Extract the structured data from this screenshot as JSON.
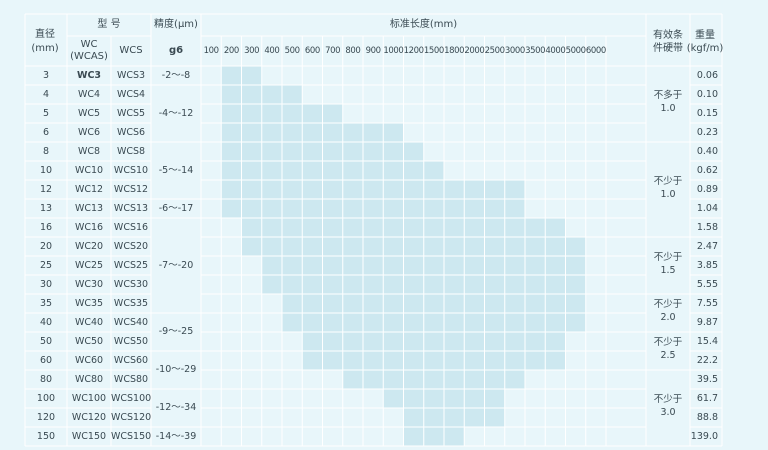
{
  "headers": {
    "diameter": [
      "直径",
      "(mm)"
    ],
    "model": "型 号",
    "model_wc": [
      "WC",
      "(WCAS)"
    ],
    "model_wcs": "WCS",
    "precision": "精度(μm)",
    "precision_sub": "g6",
    "length": "标准长度(mm)",
    "hardness": [
      "有效条",
      "件硬带"
    ],
    "weight": [
      "重量",
      "(kgf/m)"
    ]
  },
  "lengths": [
    "100",
    "200",
    "300",
    "400",
    "500",
    "600",
    "700",
    "800",
    "900",
    "1000",
    "1200",
    "1500",
    "1800",
    "2000",
    "2500",
    "3000",
    "3500",
    "4000",
    "5000",
    "6000"
  ],
  "rows": [
    {
      "d": "3",
      "wc": "WC3",
      "wcs": "WCS3",
      "w": "0.06",
      "span": [
        1,
        2
      ]
    },
    {
      "d": "4",
      "wc": "WC4",
      "wcs": "WCS4",
      "w": "0.10",
      "span": [
        1,
        4
      ]
    },
    {
      "d": "5",
      "wc": "WC5",
      "wcs": "WCS5",
      "w": "0.15",
      "span": [
        1,
        6
      ]
    },
    {
      "d": "6",
      "wc": "WC6",
      "wcs": "WCS6",
      "w": "0.23",
      "span": [
        1,
        9
      ]
    },
    {
      "d": "8",
      "wc": "WC8",
      "wcs": "WCS8",
      "w": "0.40",
      "span": [
        1,
        10
      ]
    },
    {
      "d": "10",
      "wc": "WC10",
      "wcs": "WCS10",
      "w": "0.62",
      "span": [
        1,
        11
      ]
    },
    {
      "d": "12",
      "wc": "WC12",
      "wcs": "WCS12",
      "w": "0.89",
      "span": [
        1,
        15
      ]
    },
    {
      "d": "13",
      "wc": "WC13",
      "wcs": "WCS13",
      "w": "1.04",
      "span": [
        1,
        15
      ]
    },
    {
      "d": "16",
      "wc": "WC16",
      "wcs": "WCS16",
      "w": "1.58",
      "span": [
        2,
        17
      ]
    },
    {
      "d": "20",
      "wc": "WC20",
      "wcs": "WCS20",
      "w": "2.47",
      "span": [
        2,
        18
      ]
    },
    {
      "d": "25",
      "wc": "WC25",
      "wcs": "WCS25",
      "w": "3.85",
      "span": [
        3,
        18
      ]
    },
    {
      "d": "30",
      "wc": "WC30",
      "wcs": "WCS30",
      "w": "5.55",
      "span": [
        3,
        18
      ]
    },
    {
      "d": "35",
      "wc": "WC35",
      "wcs": "WCS35",
      "w": "7.55",
      "span": [
        4,
        18
      ]
    },
    {
      "d": "40",
      "wc": "WC40",
      "wcs": "WCS40",
      "w": "9.87",
      "span": [
        4,
        18
      ]
    },
    {
      "d": "50",
      "wc": "WC50",
      "wcs": "WCS50",
      "w": "15.4",
      "span": [
        5,
        17
      ]
    },
    {
      "d": "60",
      "wc": "WC60",
      "wcs": "WCS60",
      "w": "22.2",
      "span": [
        5,
        17
      ]
    },
    {
      "d": "80",
      "wc": "WC80",
      "wcs": "WCS80",
      "w": "39.5",
      "span": [
        7,
        15
      ]
    },
    {
      "d": "100",
      "wc": "WC100",
      "wcs": "WCS100",
      "w": "61.7",
      "span": [
        9,
        14
      ]
    },
    {
      "d": "120",
      "wc": "WC120",
      "wcs": "WCS120",
      "w": "88.8",
      "span": [
        10,
        14
      ]
    },
    {
      "d": "150",
      "wc": "WC150",
      "wcs": "WCS150",
      "w": "139.0",
      "span": [
        10,
        12
      ]
    }
  ],
  "precision_groups": [
    {
      "label": "-2～-8",
      "rows": [
        0,
        0
      ]
    },
    {
      "label": "-4～-12",
      "rows": [
        1,
        3
      ]
    },
    {
      "label": "-5～-14",
      "rows": [
        4,
        6
      ]
    },
    {
      "label": "-6～-17",
      "rows": [
        7,
        7
      ]
    },
    {
      "label": "-7～-20",
      "rows": [
        8,
        12
      ]
    },
    {
      "label": "-9～-25",
      "rows": [
        13,
        14
      ]
    },
    {
      "label": "-10～-29",
      "rows": [
        15,
        16
      ]
    },
    {
      "label": "-12～-34",
      "rows": [
        17,
        18
      ]
    },
    {
      "label": "-14～-39",
      "rows": [
        19,
        19
      ]
    }
  ],
  "hardness_groups": [
    {
      "lines": [
        "不多于",
        "1.0"
      ],
      "rows": [
        0,
        3
      ]
    },
    {
      "lines": [
        "不少于",
        "1.0"
      ],
      "rows": [
        4,
        8
      ]
    },
    {
      "lines": [
        "不少于",
        "1.5"
      ],
      "rows": [
        9,
        11
      ]
    },
    {
      "lines": [
        "不少于",
        "2.0"
      ],
      "rows": [
        12,
        13
      ]
    },
    {
      "lines": [
        "不少于",
        "2.5"
      ],
      "rows": [
        14,
        15
      ]
    },
    {
      "lines": [
        "不少于",
        "3.0"
      ],
      "rows": [
        16,
        19
      ]
    }
  ],
  "colors": {
    "shade": "#cde8f0",
    "line": "#ffffff",
    "bg": "#e8f6fa",
    "text": "#3a4a52"
  }
}
